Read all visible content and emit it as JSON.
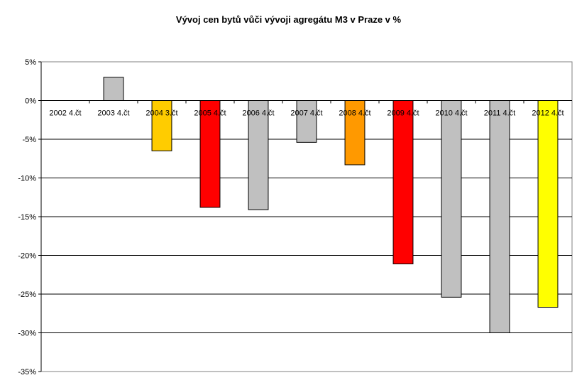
{
  "chart_data": {
    "type": "bar",
    "title": "Vývoj cen bytů vůči vývoji agregátu M3 v Praze v %",
    "xlabel": "",
    "ylabel": "",
    "ylim": [
      -35,
      5
    ],
    "y_ticks": [
      5,
      0,
      -5,
      -10,
      -15,
      -20,
      -25,
      -30,
      -35
    ],
    "y_tick_labels": [
      "5%",
      "0%",
      "-5%",
      "-10%",
      "-15%",
      "-20%",
      "-25%",
      "-30%",
      "-35%"
    ],
    "grid": true,
    "categories": [
      "2002 4.čt",
      "2003 4.čt",
      "2004 3.čt",
      "2005 4.čt",
      "2006 4.čt",
      "2007 4.čt",
      "2008 4.čt",
      "2009 4.čt",
      "2010 4.čt",
      "2011 4.čt",
      "2012 4.čt"
    ],
    "values": [
      0,
      3.0,
      -6.5,
      -13.8,
      -14.1,
      -5.4,
      -8.3,
      -21.1,
      -25.4,
      -30.0,
      -26.7
    ],
    "bar_colors": [
      "#c0c0c0",
      "#c0c0c0",
      "#ffcc00",
      "#ff0000",
      "#c0c0c0",
      "#c0c0c0",
      "#ff9900",
      "#ff0000",
      "#c0c0c0",
      "#c0c0c0",
      "#ffff00"
    ]
  }
}
